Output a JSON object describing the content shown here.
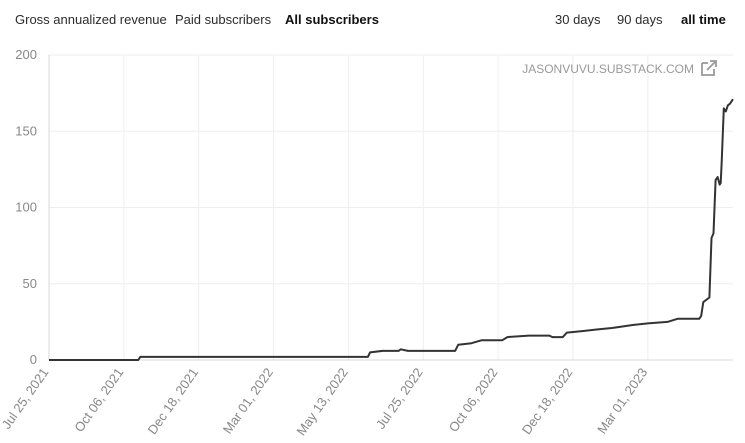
{
  "metric_tabs": [
    {
      "label": "Gross annualized revenue",
      "active": false
    },
    {
      "label": "Paid subscribers",
      "active": false
    },
    {
      "label": "All subscribers",
      "active": true
    }
  ],
  "range_tabs": [
    {
      "label": "30 days",
      "active": false
    },
    {
      "label": "90 days",
      "active": false
    },
    {
      "label": "all time",
      "active": true
    }
  ],
  "watermark": "JASONVUVU.SUBSTACK.COM",
  "external_link_icon": "external-link-icon",
  "colors": {
    "line": "#333333",
    "grid": "#eeeeee",
    "tick_text": "#888888",
    "watermark": "#999999"
  },
  "chart_data": {
    "type": "line",
    "title": "",
    "xlabel": "",
    "ylabel": "",
    "ylim": [
      0,
      200
    ],
    "yticks": [
      0,
      50,
      100,
      150,
      200
    ],
    "xlim": [
      "2021-07-25",
      "2023-05-23"
    ],
    "xticks": [
      "Jul 25, 2021",
      "Oct 06, 2021",
      "Dec 18, 2021",
      "Mar 01, 2022",
      "May 13, 2022",
      "Jul 25, 2022",
      "Oct 06, 2022",
      "Dec 18, 2022",
      "Mar 01, 2023"
    ],
    "grid": true,
    "legend": "none",
    "series": [
      {
        "points": [
          [
            "2021-07-25",
            0
          ],
          [
            "2021-10-20",
            0
          ],
          [
            "2021-10-22",
            2
          ],
          [
            "2022-06-01",
            2
          ],
          [
            "2022-06-03",
            5
          ],
          [
            "2022-06-15",
            6
          ],
          [
            "2022-07-01",
            6
          ],
          [
            "2022-07-03",
            7
          ],
          [
            "2022-07-10",
            6
          ],
          [
            "2022-08-25",
            6
          ],
          [
            "2022-08-28",
            10
          ],
          [
            "2022-09-10",
            11
          ],
          [
            "2022-09-20",
            13
          ],
          [
            "2022-10-10",
            13
          ],
          [
            "2022-10-15",
            15
          ],
          [
            "2022-11-05",
            16
          ],
          [
            "2022-11-25",
            16
          ],
          [
            "2022-11-28",
            15
          ],
          [
            "2022-12-08",
            15
          ],
          [
            "2022-12-12",
            18
          ],
          [
            "2022-12-28",
            19
          ],
          [
            "2023-01-10",
            20
          ],
          [
            "2023-01-25",
            21
          ],
          [
            "2023-02-05",
            22
          ],
          [
            "2023-02-15",
            23
          ],
          [
            "2023-03-01",
            24
          ],
          [
            "2023-03-20",
            25
          ],
          [
            "2023-03-30",
            27
          ],
          [
            "2023-04-20",
            27
          ],
          [
            "2023-04-22",
            29
          ],
          [
            "2023-04-24",
            38
          ],
          [
            "2023-04-30",
            41
          ],
          [
            "2023-05-02",
            80
          ],
          [
            "2023-05-04",
            83
          ],
          [
            "2023-05-06",
            118
          ],
          [
            "2023-05-08",
            120
          ],
          [
            "2023-05-10",
            115
          ],
          [
            "2023-05-11",
            116
          ],
          [
            "2023-05-12",
            130
          ],
          [
            "2023-05-14",
            165
          ],
          [
            "2023-05-16",
            163
          ],
          [
            "2023-05-18",
            167
          ],
          [
            "2023-05-20",
            168
          ],
          [
            "2023-05-23",
            171
          ]
        ]
      }
    ]
  }
}
